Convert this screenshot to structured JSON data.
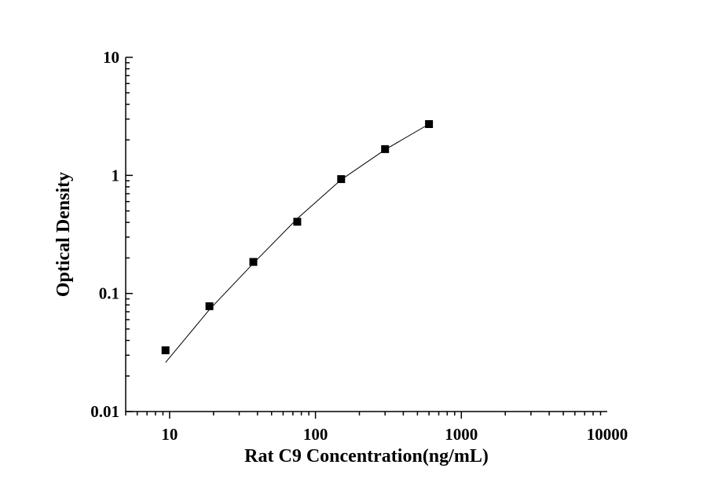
{
  "chart_data": {
    "type": "scatter",
    "title": "",
    "xlabel": "Rat C9 Concentration(ng/mL)",
    "ylabel": "Optical Density",
    "x_scale": "log",
    "y_scale": "log",
    "xlim": [
      5,
      10000
    ],
    "ylim": [
      0.01,
      10
    ],
    "x_ticks": [
      10,
      100,
      1000,
      10000
    ],
    "x_tick_labels": [
      "10",
      "100",
      "1000",
      "10000"
    ],
    "y_ticks": [
      0.01,
      0.1,
      1,
      10
    ],
    "y_tick_labels": [
      "0.01",
      "0.1",
      "1",
      "10"
    ],
    "grid": false,
    "legend": "none",
    "series": [
      {
        "marker": "square",
        "x": [
          9.375,
          18.75,
          37.5,
          75,
          150,
          300,
          600
        ],
        "y": [
          0.033,
          0.078,
          0.185,
          0.405,
          0.93,
          1.67,
          2.72
        ]
      }
    ],
    "fit_curve": {
      "x": [
        9.375,
        18.75,
        37.5,
        75,
        150,
        300,
        600
      ],
      "y": [
        0.026,
        0.073,
        0.18,
        0.43,
        0.92,
        1.65,
        2.72
      ]
    },
    "colors": {
      "marker": "#000000",
      "line": "#000000",
      "axis": "#000000"
    }
  }
}
